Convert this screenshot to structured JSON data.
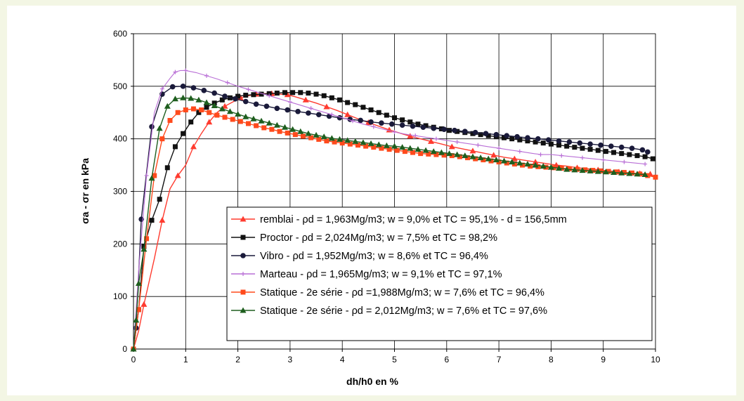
{
  "chart_data": {
    "type": "line",
    "title": "",
    "xlabel": "dh/h0 en %",
    "ylabel": "σa - σr en kPa",
    "xlim": [
      0,
      10
    ],
    "ylim": [
      0,
      600
    ],
    "xticks": [
      "0",
      "1",
      "2",
      "3",
      "4",
      "5",
      "6",
      "7",
      "8",
      "9",
      "10"
    ],
    "yticks": [
      "0",
      "100",
      "200",
      "300",
      "400",
      "500",
      "600"
    ],
    "grid": true,
    "legend_position": "bottom-right",
    "series": [
      {
        "name": "remblai - ρd = 1,963Mg/m3; w = 9,0% et TC = 95,1% - d = 156,5mm",
        "color": "#ff3b2f",
        "marker": "triangle",
        "marker_every": 2,
        "x": [
          0,
          0.1,
          0.2,
          0.4,
          0.55,
          0.7,
          0.85,
          1.0,
          1.15,
          1.3,
          1.45,
          1.6,
          1.75,
          1.9,
          2.05,
          2.2,
          2.35,
          2.5,
          2.65,
          2.8,
          2.95,
          3.1,
          3.3,
          3.5,
          3.7,
          3.9,
          4.1,
          4.3,
          4.5,
          4.7,
          4.9,
          5.1,
          5.3,
          5.5,
          5.7,
          5.9,
          6.1,
          6.3,
          6.5,
          6.7,
          6.9,
          7.1,
          7.3,
          7.5,
          7.7,
          7.9,
          8.1,
          8.3,
          8.5,
          8.7,
          8.9,
          9.1,
          9.3,
          9.5,
          9.7,
          9.9
        ],
        "y": [
          0,
          35,
          85,
          172,
          245,
          305,
          330,
          350,
          385,
          410,
          432,
          450,
          462,
          470,
          478,
          482,
          485,
          486,
          486,
          485,
          484,
          480,
          474,
          468,
          461,
          454,
          446,
          438,
          431,
          424,
          417,
          411,
          405,
          400,
          395,
          390,
          385,
          381,
          377,
          373,
          369,
          365,
          362,
          359,
          356,
          353,
          350,
          348,
          345,
          343,
          341,
          339,
          337,
          335,
          334,
          333
        ]
      },
      {
        "name": "Proctor - ρd = 2,024Mg/m3; w = 7,5% et TC = 98,2%",
        "color": "#111111",
        "marker": "square",
        "marker_every": 1,
        "x": [
          0,
          0.1,
          0.2,
          0.35,
          0.5,
          0.65,
          0.8,
          0.95,
          1.1,
          1.25,
          1.4,
          1.55,
          1.7,
          1.85,
          2.0,
          2.15,
          2.3,
          2.45,
          2.6,
          2.75,
          2.9,
          3.05,
          3.2,
          3.35,
          3.5,
          3.65,
          3.8,
          3.95,
          4.1,
          4.25,
          4.4,
          4.55,
          4.7,
          4.85,
          5.0,
          5.15,
          5.3,
          5.45,
          5.6,
          5.75,
          5.9,
          6.05,
          6.2,
          6.35,
          6.5,
          6.65,
          6.8,
          6.95,
          7.1,
          7.25,
          7.4,
          7.55,
          7.7,
          7.85,
          8.0,
          8.15,
          8.3,
          8.45,
          8.6,
          8.75,
          8.9,
          9.05,
          9.2,
          9.35,
          9.5,
          9.65,
          9.8,
          9.95
        ],
        "y": [
          0,
          75,
          195,
          245,
          285,
          345,
          385,
          410,
          432,
          450,
          460,
          468,
          474,
          478,
          481,
          483,
          484,
          485,
          486,
          487,
          488,
          488,
          488,
          487,
          485,
          482,
          478,
          474,
          469,
          465,
          460,
          455,
          450,
          445,
          440,
          436,
          432,
          428,
          425,
          422,
          419,
          416,
          414,
          412,
          410,
          408,
          406,
          404,
          402,
          400,
          398,
          396,
          394,
          392,
          390,
          388,
          386,
          384,
          382,
          380,
          378,
          376,
          374,
          372,
          370,
          368,
          366,
          362
        ]
      },
      {
        "name": "Vibro - ρd = 1,952Mg/m3; w = 8,6% et TC = 96,4%",
        "color": "#1a1a3a",
        "marker": "circle",
        "marker_every": 1,
        "x": [
          0,
          0.05,
          0.15,
          0.35,
          0.55,
          0.75,
          0.95,
          1.15,
          1.35,
          1.55,
          1.75,
          1.95,
          2.15,
          2.35,
          2.55,
          2.75,
          2.95,
          3.15,
          3.35,
          3.55,
          3.75,
          3.95,
          4.15,
          4.35,
          4.55,
          4.75,
          4.95,
          5.15,
          5.35,
          5.55,
          5.75,
          5.95,
          6.15,
          6.35,
          6.55,
          6.75,
          6.95,
          7.15,
          7.35,
          7.55,
          7.75,
          7.95,
          8.15,
          8.35,
          8.55,
          8.75,
          8.95,
          9.15,
          9.35,
          9.55,
          9.75,
          9.85
        ],
        "y": [
          0,
          40,
          247,
          423,
          485,
          499,
          500,
          497,
          492,
          487,
          481,
          476,
          471,
          466,
          462,
          458,
          455,
          452,
          449,
          446,
          443,
          440,
          437,
          435,
          432,
          430,
          428,
          426,
          424,
          422,
          420,
          418,
          416,
          414,
          412,
          410,
          408,
          406,
          404,
          402,
          400,
          398,
          396,
          394,
          392,
          390,
          388,
          386,
          384,
          382,
          379,
          375
        ]
      },
      {
        "name": "Marteau - ρd = 1,965Mg/m3; w = 9,1% et TC = 97,1%",
        "color": "#b96fd6",
        "marker": "plus",
        "marker_every": 2,
        "x": [
          0,
          0.1,
          0.25,
          0.4,
          0.55,
          0.7,
          0.8,
          0.9,
          1.0,
          1.2,
          1.4,
          1.6,
          1.8,
          2.0,
          2.2,
          2.4,
          2.6,
          2.8,
          3.0,
          3.2,
          3.4,
          3.6,
          3.8,
          4.0,
          4.2,
          4.4,
          4.6,
          4.8,
          5.0,
          5.2,
          5.4,
          5.6,
          5.8,
          6.0,
          6.2,
          6.4,
          6.6,
          6.8,
          7.0,
          7.2,
          7.4,
          7.6,
          7.8,
          8.0,
          8.2,
          8.4,
          8.6,
          8.8,
          9.0,
          9.2,
          9.4,
          9.6,
          9.8
        ],
        "y": [
          0,
          150,
          330,
          450,
          495,
          515,
          527,
          530,
          530,
          526,
          520,
          514,
          507,
          500,
          494,
          488,
          482,
          476,
          470,
          464,
          458,
          452,
          446,
          440,
          434,
          428,
          423,
          418,
          413,
          409,
          406,
          403,
          400,
          397,
          394,
          391,
          388,
          385,
          382,
          379,
          376,
          373,
          370,
          370,
          368,
          366,
          364,
          362,
          360,
          358,
          356,
          354,
          352
        ]
      },
      {
        "name": "Statique - 2e série - ρd =1,988Mg/m3; w = 7,6% et TC = 96,4%",
        "color": "#ff4a1c",
        "marker": "square",
        "marker_every": 1,
        "x": [
          0,
          0.1,
          0.25,
          0.4,
          0.55,
          0.7,
          0.85,
          1.0,
          1.15,
          1.3,
          1.45,
          1.6,
          1.75,
          1.9,
          2.05,
          2.2,
          2.35,
          2.5,
          2.65,
          2.8,
          2.95,
          3.1,
          3.25,
          3.4,
          3.55,
          3.7,
          3.85,
          4.0,
          4.15,
          4.3,
          4.45,
          4.6,
          4.75,
          4.9,
          5.05,
          5.2,
          5.35,
          5.5,
          5.65,
          5.8,
          5.95,
          6.1,
          6.25,
          6.4,
          6.55,
          6.7,
          6.85,
          7.0,
          7.15,
          7.3,
          7.45,
          7.6,
          7.75,
          7.9,
          8.05,
          8.2,
          8.35,
          8.5,
          8.65,
          8.8,
          8.95,
          9.1,
          9.25,
          9.4,
          9.55,
          9.7,
          9.85,
          10.0
        ],
        "y": [
          0,
          75,
          210,
          330,
          400,
          435,
          450,
          455,
          457,
          455,
          450,
          445,
          441,
          437,
          433,
          429,
          425,
          421,
          418,
          414,
          411,
          408,
          405,
          402,
          399,
          396,
          394,
          392,
          390,
          388,
          386,
          384,
          382,
          380,
          378,
          376,
          374,
          372,
          371,
          370,
          369,
          368,
          366,
          364,
          362,
          360,
          358,
          356,
          354,
          352,
          350,
          348,
          347,
          346,
          345,
          344,
          343,
          342,
          341,
          340,
          339,
          338,
          337,
          336,
          335,
          333,
          330,
          327
        ]
      },
      {
        "name": "Statique - 2e série - ρd = 2,012Mg/m3; w = 7,6% et TC = 97,6%",
        "color": "#1e5e1e",
        "marker": "triangle",
        "marker_every": 1,
        "x": [
          0,
          0.05,
          0.1,
          0.2,
          0.35,
          0.5,
          0.65,
          0.8,
          0.95,
          1.1,
          1.25,
          1.4,
          1.55,
          1.7,
          1.85,
          2.0,
          2.15,
          2.3,
          2.45,
          2.6,
          2.75,
          2.9,
          3.05,
          3.2,
          3.35,
          3.5,
          3.65,
          3.8,
          3.95,
          4.1,
          4.25,
          4.4,
          4.55,
          4.7,
          4.85,
          5.0,
          5.15,
          5.3,
          5.45,
          5.6,
          5.75,
          5.9,
          6.05,
          6.2,
          6.35,
          6.5,
          6.65,
          6.8,
          6.95,
          7.1,
          7.25,
          7.4,
          7.55,
          7.7,
          7.85,
          8.0,
          8.15,
          8.3,
          8.45,
          8.6,
          8.75,
          8.9,
          9.05,
          9.2,
          9.35,
          9.5,
          9.65,
          9.8
        ],
        "y": [
          0,
          55,
          125,
          190,
          325,
          420,
          462,
          476,
          478,
          477,
          474,
          469,
          463,
          457,
          452,
          447,
          442,
          438,
          434,
          430,
          426,
          422,
          418,
          414,
          410,
          407,
          404,
          401,
          399,
          397,
          395,
          393,
          391,
          389,
          387,
          386,
          384,
          382,
          380,
          378,
          376,
          374,
          372,
          370,
          368,
          366,
          364,
          362,
          360,
          358,
          356,
          354,
          352,
          350,
          348,
          346,
          344,
          342,
          341,
          340,
          339,
          338,
          337,
          336,
          335,
          334,
          333,
          332
        ]
      }
    ]
  }
}
